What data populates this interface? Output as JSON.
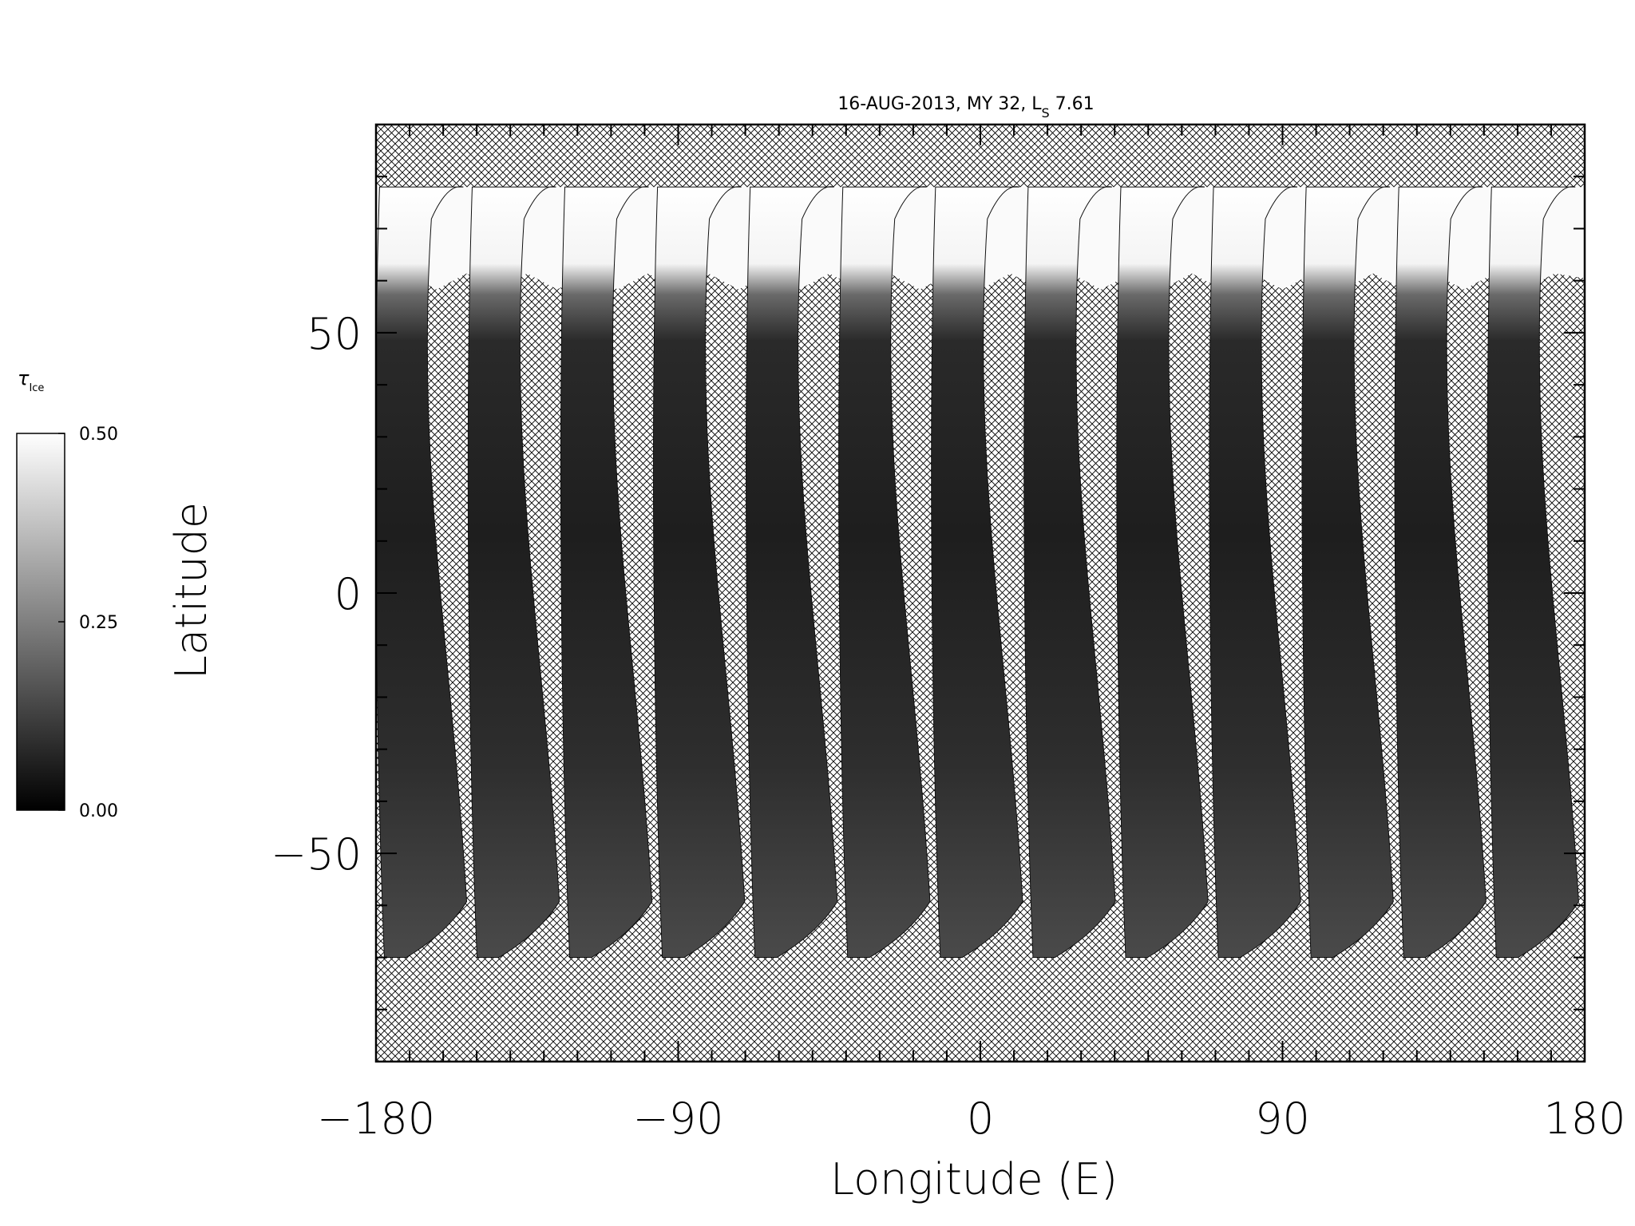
{
  "chart_data": {
    "type": "heatmap",
    "title": {
      "main": "16-AUG-2013, MY 32,  L",
      "sub": "S",
      "value": " 7.61"
    },
    "xlabel": "Longitude (E)",
    "ylabel": "Latitude",
    "xlim": [
      -180,
      180
    ],
    "ylim": [
      -90,
      90
    ],
    "x_ticks": [
      {
        "value": -180,
        "label": "−180"
      },
      {
        "value": -90,
        "label": "−90"
      },
      {
        "value": 0,
        "label": "0"
      },
      {
        "value": 90,
        "label": "90"
      },
      {
        "value": 180,
        "label": "180"
      }
    ],
    "y_ticks": [
      {
        "value": -50,
        "label": "−50"
      },
      {
        "value": 0,
        "label": "0"
      },
      {
        "value": 50,
        "label": "50"
      }
    ],
    "x_minor_step": 10,
    "y_minor_step": 10,
    "no_data_pattern": "crosshatch",
    "colorbar": {
      "label_main": "τ",
      "label_sub": "Ice",
      "min": 0.0,
      "max": 0.5,
      "ticks": [
        {
          "value": 0.0,
          "label": "0.00"
        },
        {
          "value": 0.25,
          "label": "0.25"
        },
        {
          "value": 0.5,
          "label": "0.50"
        }
      ],
      "colors": {
        "low": "#000000",
        "high": "#ffffff"
      }
    },
    "swaths": {
      "count": 13,
      "north_edge_lat": 78,
      "south_edge_lat": -70,
      "ice_cap_lat": 62,
      "ice_cap_tau": 0.5,
      "mid_lat_tau": 0.08,
      "start_lon": -178,
      "spacing_lon": 27.6
    }
  }
}
